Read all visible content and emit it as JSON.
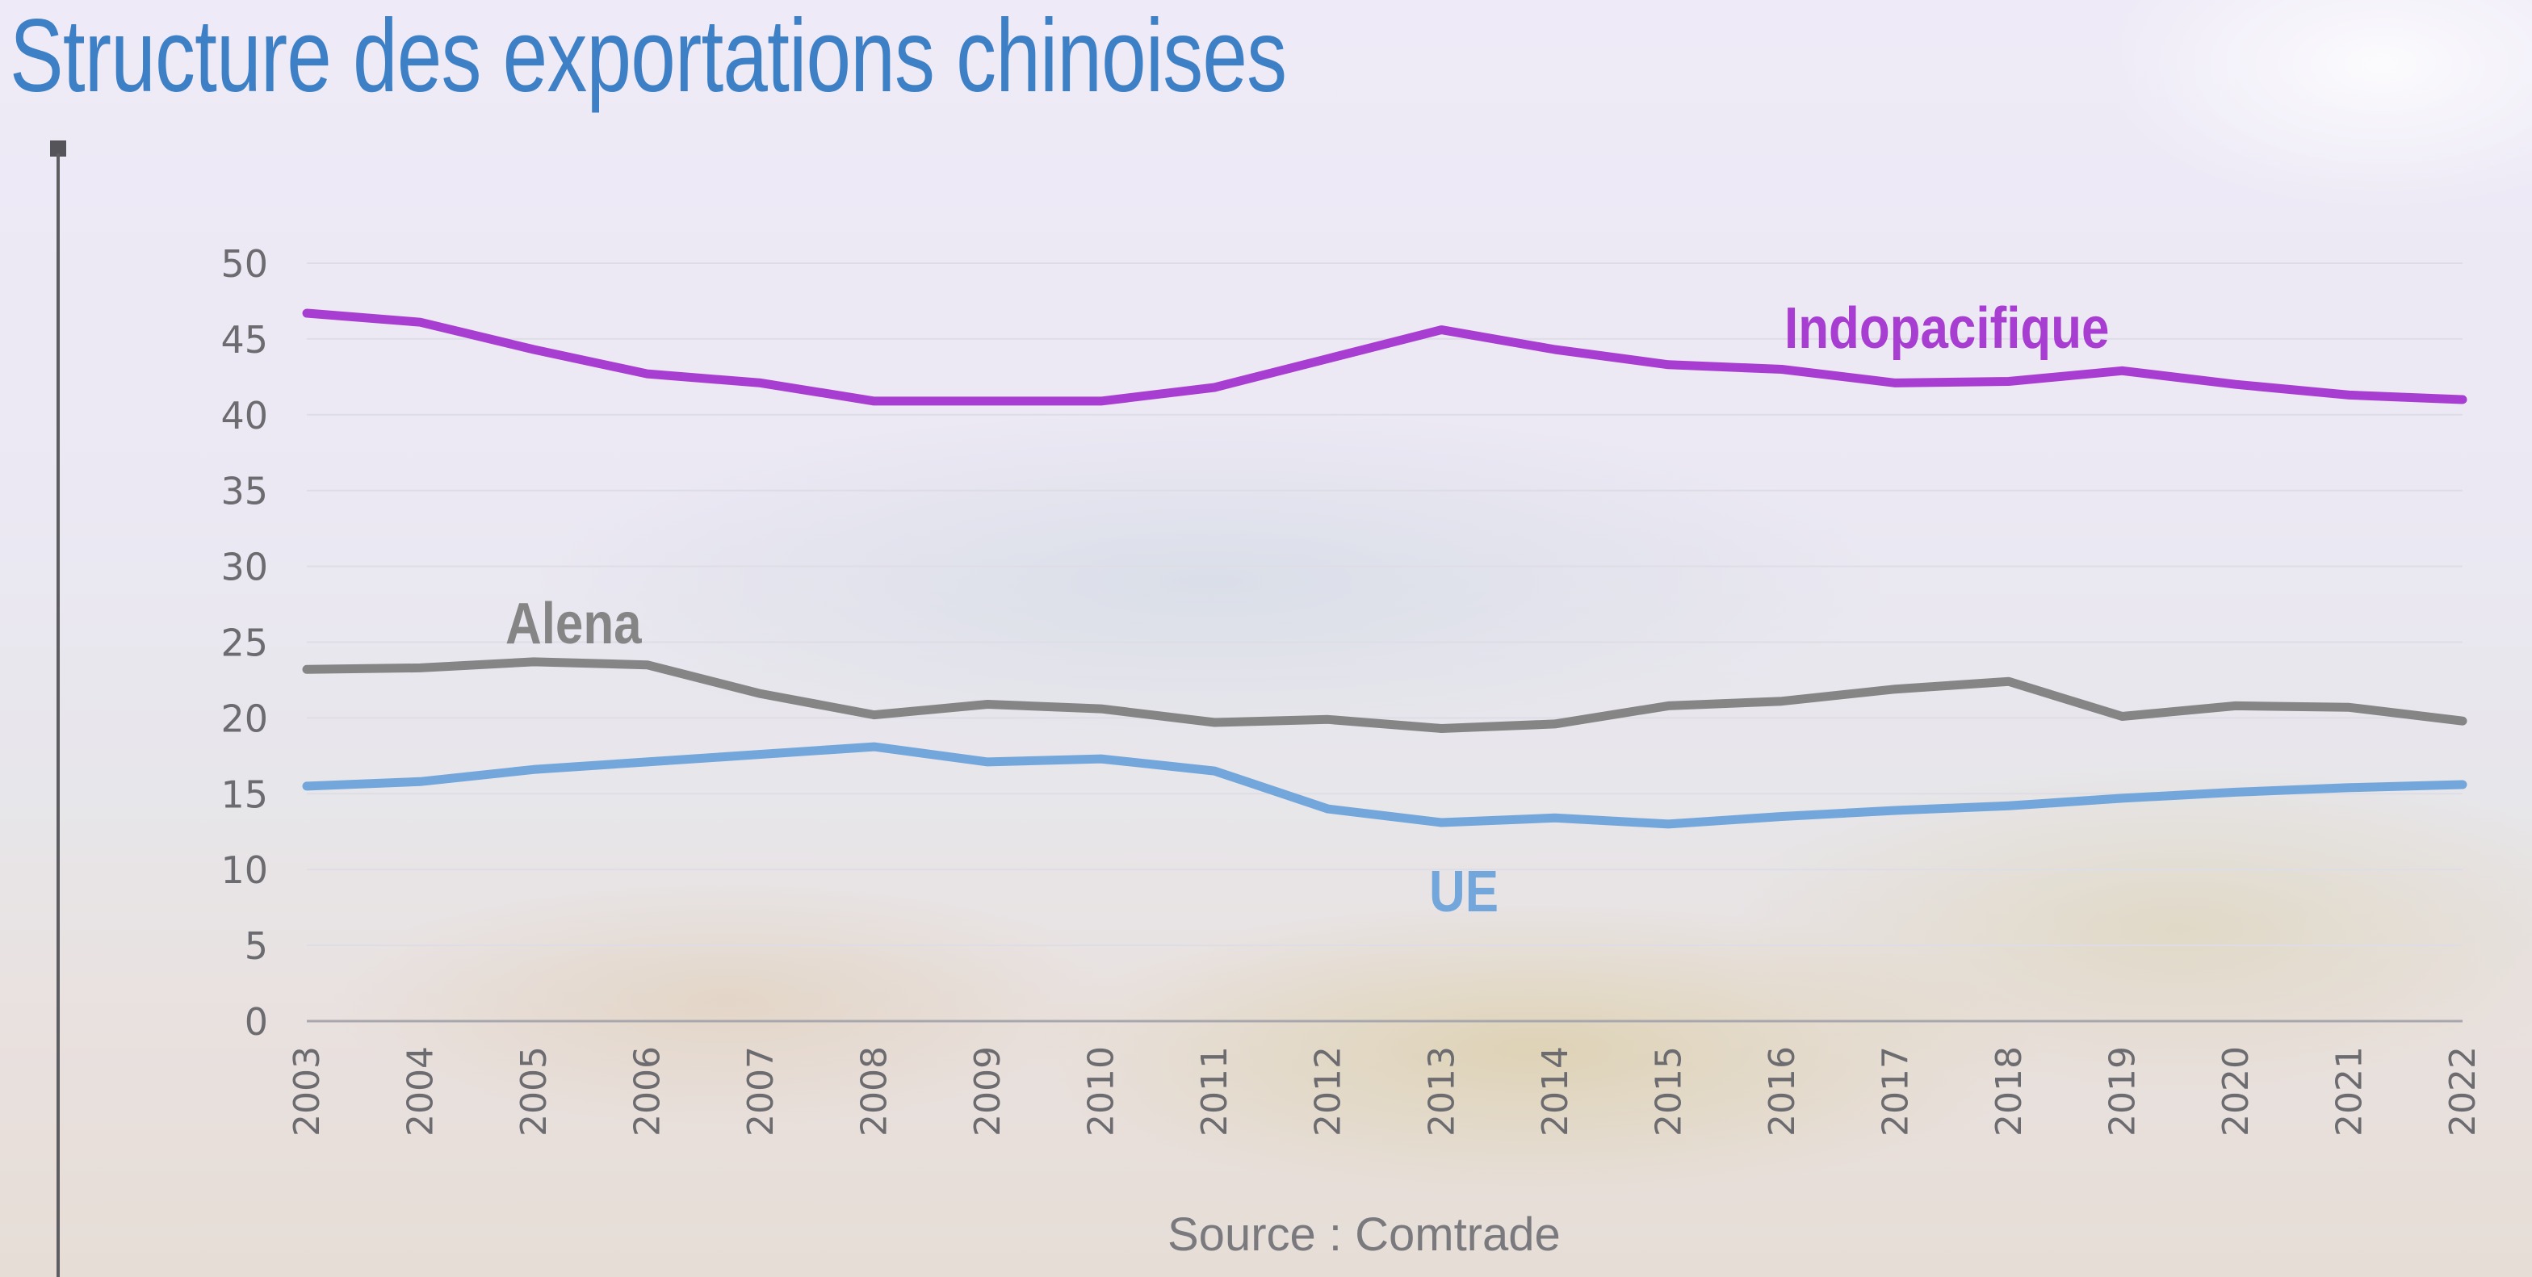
{
  "title": "Structure des exportations chinoises",
  "source": "Source : Comtrade",
  "chart_data": {
    "type": "line",
    "title": "Structure des exportations chinoises",
    "xlabel": "",
    "ylabel": "",
    "x": [
      "2003",
      "2004",
      "2005",
      "2006",
      "2007",
      "2008",
      "2009",
      "2010",
      "2011",
      "2012",
      "2013",
      "2014",
      "2015",
      "2016",
      "2017",
      "2018",
      "2019",
      "2020",
      "2021",
      "2022"
    ],
    "yticks": [
      "0",
      "5",
      "10",
      "15",
      "20",
      "25",
      "30",
      "35",
      "40",
      "45",
      "50"
    ],
    "ylim": [
      0,
      50
    ],
    "grid": true,
    "legend": "inline labels",
    "series": [
      {
        "name": "Indopacifique",
        "color": "#a83ed1",
        "values": [
          46.7,
          46.1,
          44.3,
          42.7,
          42.1,
          40.9,
          40.9,
          40.9,
          41.8,
          43.7,
          45.6,
          44.3,
          43.3,
          43.0,
          42.1,
          42.2,
          42.9,
          42.0,
          41.3,
          41.0
        ]
      },
      {
        "name": "Alena",
        "color": "#858585",
        "values": [
          23.2,
          23.3,
          23.7,
          23.5,
          21.6,
          20.2,
          20.9,
          20.6,
          19.7,
          19.9,
          19.3,
          19.6,
          20.8,
          21.1,
          21.9,
          22.4,
          20.1,
          20.8,
          20.7,
          19.8
        ]
      },
      {
        "name": "UE",
        "color": "#73a6db",
        "values": [
          15.5,
          15.8,
          16.6,
          17.1,
          17.6,
          18.1,
          17.1,
          17.3,
          16.5,
          14.0,
          13.1,
          13.4,
          13.0,
          13.5,
          13.9,
          14.2,
          14.7,
          15.1,
          15.4,
          15.6
        ]
      }
    ]
  }
}
